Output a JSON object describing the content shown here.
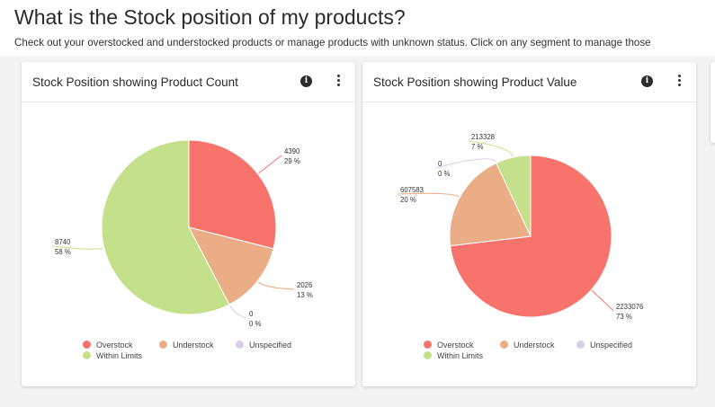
{
  "page": {
    "title": "What is the Stock position of my products?",
    "subtitle": "Check out your overstocked and understocked products or manage products with unknown status. Click on any segment to manage those"
  },
  "colors": {
    "Overstock": "#f8736c",
    "Understock": "#eaad85",
    "Unspecified": "#d9cce8",
    "Within Limits": "#c5e08a"
  },
  "legend": [
    "Overstock",
    "Understock",
    "Unspecified",
    "Within Limits"
  ],
  "cards": [
    {
      "title": "Stock Position showing Product Count",
      "info_icon": "info-icon",
      "menu_icon": "kebab-menu-icon"
    },
    {
      "title": "Stock Position showing Product Value",
      "info_icon": "info-icon",
      "menu_icon": "kebab-menu-icon"
    }
  ],
  "chart_data": [
    {
      "type": "pie",
      "title": "Stock Position showing Product Count",
      "slices": [
        {
          "name": "Overstock",
          "value": 4390,
          "label": "4390",
          "percent": "29 %"
        },
        {
          "name": "Understock",
          "value": 2026,
          "label": "2026",
          "percent": "13 %"
        },
        {
          "name": "Unspecified",
          "value": 0,
          "label": "0",
          "percent": "0 %"
        },
        {
          "name": "Within Limits",
          "value": 8740,
          "label": "8740",
          "percent": "58 %"
        }
      ],
      "legend": [
        "Overstock",
        "Understock",
        "Unspecified",
        "Within Limits"
      ],
      "legend_position": "bottom"
    },
    {
      "type": "pie",
      "title": "Stock Position showing Product Value",
      "slices": [
        {
          "name": "Overstock",
          "value": 2233076,
          "label": "2233076",
          "percent": "73 %"
        },
        {
          "name": "Understock",
          "value": 607583,
          "label": "607583",
          "percent": "20 %"
        },
        {
          "name": "Unspecified",
          "value": 0,
          "label": "0",
          "percent": "0 %"
        },
        {
          "name": "Within Limits",
          "value": 213328,
          "label": "213328",
          "percent": "7 %"
        }
      ],
      "legend": [
        "Overstock",
        "Understock",
        "Unspecified",
        "Within Limits"
      ],
      "legend_position": "bottom"
    }
  ]
}
